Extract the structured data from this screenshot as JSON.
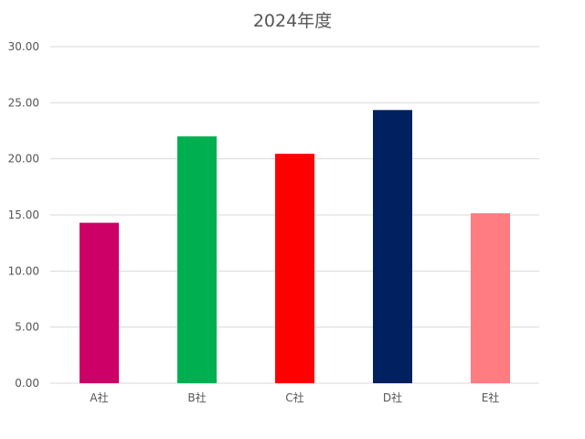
{
  "chart_data": {
    "type": "bar",
    "title": "2024年度",
    "xlabel": "",
    "ylabel": "",
    "categories": [
      "A社",
      "B社",
      "C社",
      "D社",
      "E社"
    ],
    "values": [
      14.3,
      22.0,
      20.45,
      24.35,
      15.15
    ],
    "colors": [
      "#cc0066",
      "#00b050",
      "#ff0000",
      "#002060",
      "#ff7c80"
    ],
    "ylim": [
      0,
      30
    ],
    "yticks": [
      "0.00",
      "5.00",
      "10.00",
      "15.00",
      "20.00",
      "25.00",
      "30.00"
    ],
    "grid": true,
    "legend": "none",
    "gridline_color": "#d9d9d9",
    "tick_label_color": "#595959"
  }
}
